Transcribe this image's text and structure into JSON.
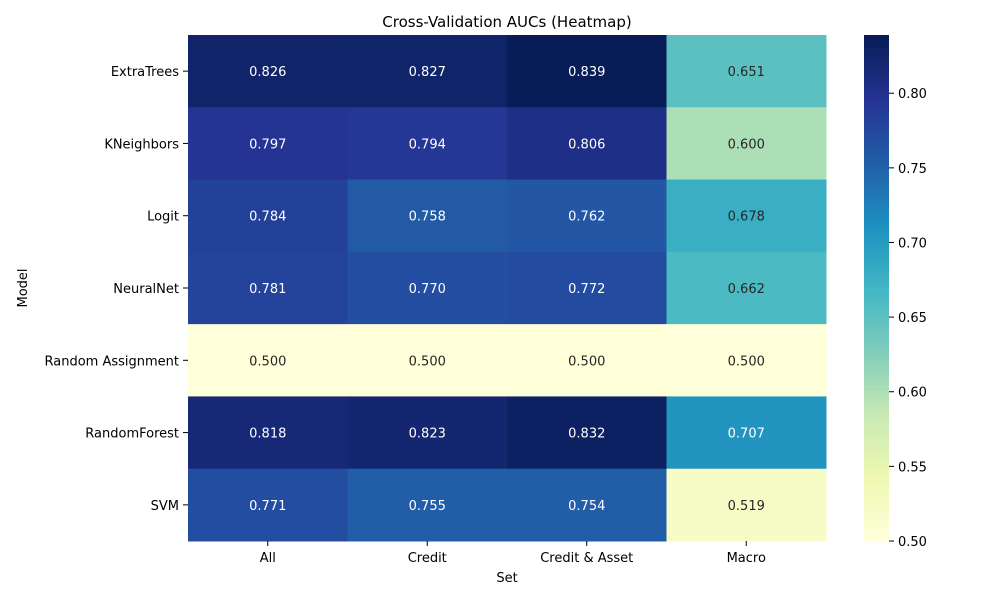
{
  "chart_data": {
    "type": "heatmap",
    "title": "Cross-Validation AUCs (Heatmap)",
    "xlabel": "Set",
    "ylabel": "Model",
    "columns": [
      "All",
      "Credit",
      "Credit & Asset",
      "Macro"
    ],
    "rows": [
      "ExtraTrees",
      "KNeighbors",
      "Logit",
      "NeuralNet",
      "Random Assignment",
      "RandomForest",
      "SVM"
    ],
    "values": [
      [
        0.826,
        0.827,
        0.839,
        0.651
      ],
      [
        0.797,
        0.794,
        0.806,
        0.6
      ],
      [
        0.784,
        0.758,
        0.762,
        0.678
      ],
      [
        0.781,
        0.77,
        0.772,
        0.662
      ],
      [
        0.5,
        0.5,
        0.5,
        0.5
      ],
      [
        0.818,
        0.823,
        0.832,
        0.707
      ],
      [
        0.771,
        0.755,
        0.754,
        0.519
      ]
    ],
    "value_format": "0.000",
    "colormap": "YlGnBu",
    "vmin": 0.5,
    "vmax": 0.839,
    "colorbar_ticks": [
      "0.50",
      "0.55",
      "0.60",
      "0.65",
      "0.70",
      "0.75",
      "0.80"
    ]
  }
}
